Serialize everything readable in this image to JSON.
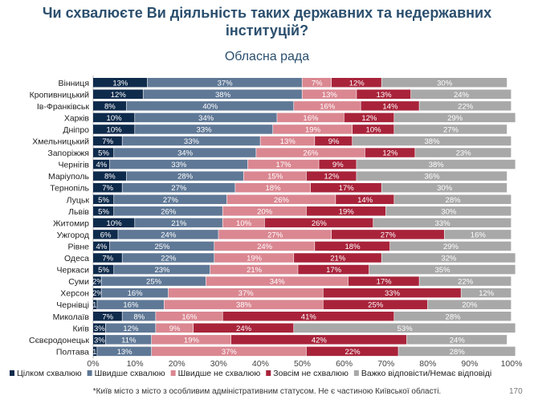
{
  "title_line1": "Чи схвалюєте Ви діяльність таких державних та недержавних",
  "title_line2": "інституцій?",
  "subtitle": "Обласна рада",
  "footnote": "*Київ місто з місто з особливим адміністративним статусом. Не є частиною Київської області.",
  "page_number": "170",
  "chart_data": {
    "type": "bar",
    "orientation": "horizontal",
    "stacked": true,
    "title": "Обласна рада",
    "xlim": [
      0,
      100
    ],
    "x_ticks": [
      "0%",
      "10%",
      "20%",
      "30%",
      "40%",
      "50%",
      "60%",
      "70%",
      "80%",
      "90%",
      "100%"
    ],
    "legend_position": "bottom",
    "grid": false,
    "categories": [
      "Вінниця",
      "Кропивницький",
      "Ів-Франківськ",
      "Харків",
      "Дніпро",
      "Хмельницький",
      "Запоріжжя",
      "Чернігів",
      "Маріуполь",
      "Тернопіль",
      "Луцьк",
      "Львів",
      "Житомир",
      "Ужгород",
      "Рівне",
      "Одеса",
      "Черкаси",
      "Суми",
      "Херсон",
      "Чернівці",
      "Миколаїв",
      "Київ",
      "Сєвєродонецьк",
      "Полтава"
    ],
    "series": [
      {
        "name": "Цілком схвалюю",
        "color": "#0f2b4c",
        "values": [
          13,
          12,
          8,
          10,
          10,
          7,
          5,
          4,
          8,
          7,
          5,
          5,
          10,
          6,
          4,
          7,
          5,
          2,
          2,
          1,
          7,
          3,
          3,
          1
        ]
      },
      {
        "name": "Швидше схвалюю",
        "color": "#5f7896",
        "values": [
          37,
          38,
          40,
          34,
          33,
          33,
          34,
          33,
          28,
          27,
          27,
          26,
          21,
          24,
          25,
          22,
          23,
          25,
          16,
          16,
          8,
          12,
          11,
          13
        ]
      },
      {
        "name": "Швидше не схвалюю",
        "color": "#da8791",
        "values": [
          7,
          13,
          16,
          16,
          19,
          13,
          26,
          17,
          15,
          18,
          26,
          20,
          10,
          27,
          24,
          19,
          21,
          34,
          37,
          38,
          16,
          9,
          19,
          37
        ]
      },
      {
        "name": "Зовсім не схвалюю",
        "color": "#a8233a",
        "values": [
          12,
          13,
          14,
          12,
          10,
          9,
          12,
          9,
          12,
          17,
          14,
          19,
          26,
          27,
          18,
          21,
          17,
          17,
          33,
          25,
          41,
          24,
          42,
          22
        ]
      },
      {
        "name": "Важко відповісти/Немає відповіді",
        "color": "#a8a8a8",
        "values": [
          30,
          24,
          22,
          29,
          27,
          38,
          23,
          38,
          36,
          30,
          28,
          30,
          33,
          16,
          29,
          32,
          35,
          22,
          12,
          20,
          28,
          53,
          24,
          28
        ]
      }
    ]
  }
}
